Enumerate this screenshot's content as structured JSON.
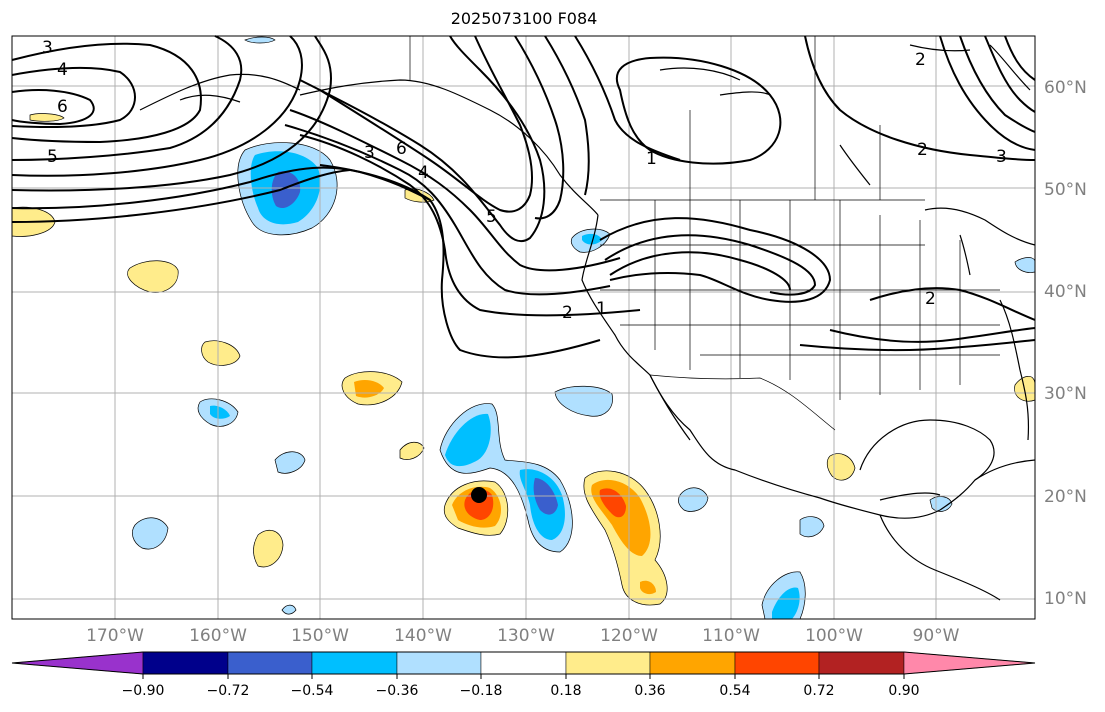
{
  "title": "2025073100 F084",
  "map": {
    "lon_labels": [
      "170°W",
      "160°W",
      "150°W",
      "140°W",
      "130°W",
      "120°W",
      "110°W",
      "100°W",
      "90°W"
    ],
    "lat_labels": [
      "60°N",
      "50°N",
      "40°N",
      "30°N",
      "20°N",
      "10°N"
    ],
    "contour_labels": [
      "3",
      "4",
      "6",
      "5",
      "3",
      "6",
      "4",
      "5",
      "2",
      "1",
      "1",
      "2",
      "2",
      "2",
      "3"
    ],
    "marker": "storm-center-dot"
  },
  "colorbar": {
    "tick_labels": [
      "−0.90",
      "−0.72",
      "−0.54",
      "−0.36",
      "−0.18",
      "0.18",
      "0.36",
      "0.54",
      "0.72",
      "0.90"
    ],
    "colors": [
      "#9932cc",
      "#00008b",
      "#3a5fcd",
      "#00bfff",
      "#b0e0ff",
      "#ffffff",
      "#ffec8b",
      "#ffa500",
      "#ff4500",
      "#b22222",
      "#ff88aa"
    ]
  }
}
